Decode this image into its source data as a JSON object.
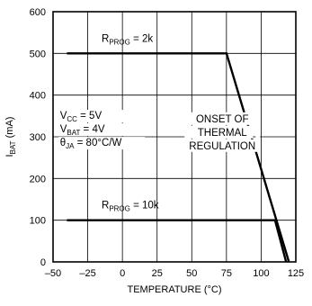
{
  "chart_data": {
    "type": "line",
    "xlabel": "TEMPERATURE (°C)",
    "ylabel": "I",
    "ylabel_sub": "BAT",
    "ylabel_unit": " (mA)",
    "xlim": [
      -50,
      125
    ],
    "ylim": [
      0,
      600
    ],
    "x_ticks": [
      -50,
      -25,
      0,
      25,
      50,
      75,
      100,
      125
    ],
    "y_ticks": [
      0,
      100,
      200,
      300,
      400,
      500,
      600
    ],
    "x_tick_labels": [
      "–50",
      "–25",
      "0",
      "25",
      "50",
      "75",
      "100",
      "125"
    ],
    "y_tick_labels": [
      "0",
      "100",
      "200",
      "300",
      "400",
      "500",
      "600"
    ],
    "grid": true,
    "series": [
      {
        "name_main": "R",
        "name_sub": "PROG",
        "name_rest": " = 2k",
        "points": [
          [
            -40,
            500
          ],
          [
            75,
            500
          ],
          [
            120,
            0
          ]
        ]
      },
      {
        "name_main": "R",
        "name_sub": "PROG",
        "name_rest": " = 10k",
        "points": [
          [
            -40,
            100
          ],
          [
            110,
            100
          ],
          [
            118,
            0
          ]
        ]
      }
    ],
    "conditions": [
      {
        "main": "V",
        "sub": "CC",
        "rest": " = 5V"
      },
      {
        "main": "V",
        "sub": "BAT",
        "rest": " = 4V"
      },
      {
        "main": "θ",
        "sub": "JA",
        "rest": " = 80°C/W"
      }
    ],
    "annotation": [
      "ONSET OF",
      "THERMAL",
      "REGULATION"
    ]
  }
}
